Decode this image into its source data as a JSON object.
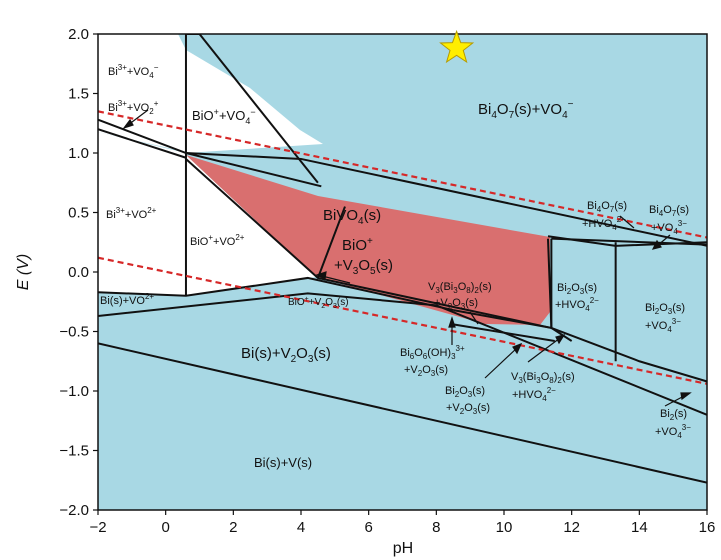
{
  "chart_data": {
    "type": "phase-diagram",
    "title": "",
    "xlabel": "pH",
    "ylabel": "E (V)",
    "xlim": [
      -2,
      16
    ],
    "ylim": [
      -2.0,
      2.0
    ],
    "xticks": [
      "-2",
      "0",
      "2",
      "4",
      "6",
      "8",
      "10",
      "12",
      "14",
      "16"
    ],
    "yticks": [
      "-2.0",
      "-1.5",
      "-1.0",
      "-0.5",
      "0.0",
      "0.5",
      "1.0",
      "1.5",
      "2.0"
    ],
    "colors": {
      "background": "#a8d8e4",
      "bivo4_region": "#d96f6f",
      "unshaded_region": "#ffffff",
      "water_lines": "#d62828",
      "star": "#ffee00"
    },
    "water_stability_lines": [
      {
        "style": "red-dotted",
        "points": [
          [
            -2,
            1.35
          ],
          [
            16,
            0.29
          ]
        ]
      },
      {
        "style": "red-dotted",
        "points": [
          [
            -2,
            0.12
          ],
          [
            16,
            -0.94
          ]
        ]
      }
    ],
    "star_marker": {
      "x": 8.6,
      "y": 1.88
    },
    "regions": [
      {
        "label": "Bi4O7(s)+VO4−"
      },
      {
        "label": "BiVO4(s)"
      },
      {
        "label": "BiO+ +V3O5(s)"
      },
      {
        "label": "Bi3+ +VO4−"
      },
      {
        "label": "Bi3+ +VO2+"
      },
      {
        "label": "BiO+ +VO4−"
      },
      {
        "label": "Bi3+ +VO2+"
      },
      {
        "label": "BiO+ +VO2+"
      },
      {
        "label": "Bi(s)+VO2+"
      },
      {
        "label": "BiO+ +V2O3(s)"
      },
      {
        "label": "Bi(s)+V2O3(s)"
      },
      {
        "label": "Bi(s)+V(s)"
      },
      {
        "label": "Bi6O6(OH)3 3+ +V2O3(s)"
      },
      {
        "label": "Bi2O3(s) +V2O3(s)"
      },
      {
        "label": "V3(Bi3O8)2(s) +V2O3(s)"
      },
      {
        "label": "V3(Bi3O8)2(s) +HVO4 2−"
      },
      {
        "label": "Bi4O7(s) +HVO4 2−"
      },
      {
        "label": "Bi4O7(s) +VO4 3−"
      },
      {
        "label": "Bi2O3(s) +HVO4 2−"
      },
      {
        "label": "Bi2O3(s) +VO4 3−"
      },
      {
        "label": "Bi2(s) +VO4 3−"
      }
    ],
    "boundaries": [
      [
        [
          -2,
          1.28
        ],
        [
          0.6,
          1.0
        ],
        [
          4.0,
          0.95
        ],
        [
          16,
          0.22
        ]
      ],
      [
        [
          -2,
          1.2
        ],
        [
          0.6,
          0.96
        ]
      ],
      [
        [
          0.6,
          2.0
        ],
        [
          0.6,
          -0.2
        ]
      ],
      [
        [
          0.6,
          1.0
        ],
        [
          4.6,
          0.72
        ]
      ],
      [
        [
          1.0,
          2.0
        ],
        [
          4.5,
          0.75
        ]
      ],
      [
        [
          0.6,
          2.0
        ],
        [
          1.0,
          2.0
        ]
      ],
      [
        [
          0.6,
          0.95
        ],
        [
          4.5,
          -0.05
        ],
        [
          11.4,
          -0.47
        ],
        [
          11.3,
          0.28
        ]
      ],
      [
        [
          4.5,
          -0.05
        ],
        [
          5.3,
          0.55
        ]
      ],
      [
        [
          -2,
          -0.17
        ],
        [
          0.6,
          -0.2
        ],
        [
          4.2,
          -0.05
        ],
        [
          8.5,
          -0.32
        ]
      ],
      [
        [
          -2,
          -0.37
        ],
        [
          4.2,
          -0.18
        ],
        [
          8.0,
          -0.28
        ],
        [
          16,
          -1.2
        ]
      ],
      [
        [
          -2,
          -0.6
        ],
        [
          16,
          -1.77
        ]
      ],
      [
        [
          8.5,
          -0.32
        ],
        [
          11.4,
          -0.47
        ],
        [
          12.0,
          -0.58
        ]
      ],
      [
        [
          8.5,
          -0.44
        ],
        [
          11.5,
          -0.58
        ]
      ],
      [
        [
          11.4,
          0.28
        ],
        [
          11.4,
          -0.47
        ]
      ],
      [
        [
          11.4,
          0.28
        ],
        [
          16,
          0.23
        ]
      ],
      [
        [
          13.3,
          0.25
        ],
        [
          13.3,
          -0.75
        ]
      ],
      [
        [
          11.3,
          0.3
        ],
        [
          13.3,
          0.22
        ],
        [
          16,
          0.25
        ]
      ],
      [
        [
          11.4,
          -0.47
        ],
        [
          14.0,
          -0.75
        ],
        [
          16,
          -0.92
        ]
      ]
    ]
  }
}
